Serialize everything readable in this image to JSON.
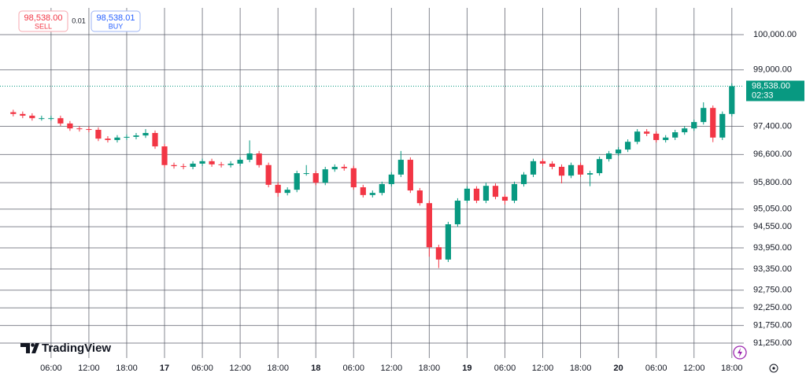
{
  "chart_data": {
    "type": "candlestick",
    "x": [
      0,
      1.5,
      3,
      4.5,
      6,
      7.5,
      9,
      10.5,
      12,
      13.5,
      15,
      16.5,
      18,
      19.5,
      21,
      22.5,
      24,
      25.5,
      27,
      28.5,
      30,
      31.5,
      33,
      34.5,
      36,
      37.5,
      39,
      40.5,
      42,
      43.5,
      45,
      46.5,
      48,
      49.5,
      51,
      52.5,
      54,
      55.5,
      57,
      58.5,
      60,
      61.5,
      63,
      64.5,
      66,
      67.5,
      69,
      70.5,
      72,
      73.5,
      75,
      76.5,
      78,
      79.5,
      81,
      82.5,
      84,
      85.5,
      87,
      88.5,
      90,
      91.5,
      93,
      94.5,
      96,
      97.5,
      99,
      100.5,
      102,
      103.5,
      105,
      106.5,
      108,
      109.5,
      111,
      112.5,
      114
    ],
    "open": [
      97800,
      97750,
      97700,
      97630,
      97630,
      97630,
      97480,
      97340,
      97320,
      97300,
      97050,
      97010,
      97080,
      97100,
      97140,
      97210,
      96830,
      96300,
      96270,
      96250,
      96340,
      96410,
      96320,
      96300,
      96340,
      96450,
      96630,
      96300,
      95740,
      95510,
      95600,
      96070,
      96070,
      95800,
      96180,
      96250,
      96210,
      95670,
      95450,
      95510,
      95760,
      96030,
      96450,
      95580,
      95220,
      93970,
      93620,
      94620,
      95290,
      95630,
      95290,
      95710,
      95400,
      95290,
      95760,
      96030,
      96410,
      96340,
      96250,
      96000,
      96300,
      96030,
      96070,
      96470,
      96630,
      96740,
      96960,
      97250,
      97190,
      97010,
      97080,
      97230,
      97340,
      97520,
      97920,
      97080,
      97750
    ],
    "high": [
      97870,
      97820,
      97770,
      97700,
      97700,
      97700,
      97550,
      97410,
      97390,
      97370,
      97120,
      97150,
      97170,
      97210,
      97320,
      97280,
      96900,
      96370,
      96340,
      96410,
      96480,
      96480,
      96390,
      96410,
      96520,
      97000,
      96700,
      96370,
      95810,
      95670,
      96140,
      96300,
      96140,
      96250,
      96320,
      96320,
      96280,
      95740,
      95580,
      95830,
      96100,
      96700,
      96520,
      95650,
      95290,
      94040,
      94690,
      95360,
      95700,
      95700,
      95800,
      95780,
      95470,
      95830,
      96100,
      96480,
      96480,
      96410,
      96320,
      96370,
      96370,
      96140,
      96540,
      96700,
      96810,
      97030,
      97320,
      97320,
      97260,
      97150,
      97300,
      97410,
      97590,
      98080,
      97990,
      97820,
      98620
    ],
    "low": [
      97680,
      97630,
      97560,
      97560,
      97560,
      97410,
      97270,
      97250,
      97230,
      96980,
      96940,
      96940,
      97010,
      97030,
      97070,
      96760,
      96230,
      96200,
      96180,
      96180,
      96270,
      96250,
      96230,
      96230,
      96270,
      96380,
      96230,
      95670,
      95400,
      95440,
      95530,
      96000,
      95730,
      95730,
      96110,
      96140,
      95600,
      95380,
      95380,
      95440,
      95690,
      95960,
      95510,
      95150,
      93700,
      93380,
      93550,
      94550,
      95220,
      95220,
      95220,
      95330,
      95180,
      95220,
      95690,
      95960,
      96270,
      96180,
      95780,
      95930,
      95960,
      95700,
      96000,
      96400,
      96560,
      96670,
      96890,
      97120,
      96940,
      96940,
      97010,
      97160,
      97270,
      97450,
      96950,
      97010,
      97680
    ],
    "close": [
      97750,
      97700,
      97630,
      97630,
      97630,
      97480,
      97340,
      97320,
      97300,
      97050,
      97010,
      97080,
      97100,
      97140,
      97210,
      96830,
      96300,
      96270,
      96250,
      96340,
      96410,
      96320,
      96300,
      96340,
      96450,
      96630,
      96300,
      95740,
      95510,
      95600,
      96070,
      96070,
      95800,
      96180,
      96250,
      96210,
      95670,
      95450,
      95510,
      95760,
      96030,
      96450,
      95580,
      95220,
      93970,
      93620,
      94620,
      95290,
      95630,
      95290,
      95710,
      95400,
      95290,
      95760,
      96030,
      96410,
      96340,
      96250,
      96000,
      96300,
      96030,
      96070,
      96470,
      96630,
      96740,
      96960,
      97250,
      97190,
      97010,
      97080,
      97230,
      97340,
      97520,
      97920,
      97080,
      97750,
      98538
    ],
    "up_color": "#089981",
    "down_color": "#f23645",
    "xlim": [
      -2.1,
      115.9
    ],
    "xticks": [
      {
        "value": 6,
        "label": "06:00"
      },
      {
        "value": 12,
        "label": "12:00"
      },
      {
        "value": 18,
        "label": "18:00"
      },
      {
        "value": 24,
        "label": "17"
      },
      {
        "value": 30,
        "label": "06:00"
      },
      {
        "value": 36,
        "label": "12:00"
      },
      {
        "value": 42,
        "label": "18:00"
      },
      {
        "value": 48,
        "label": "18"
      },
      {
        "value": 54,
        "label": "06:00"
      },
      {
        "value": 60,
        "label": "12:00"
      },
      {
        "value": 66,
        "label": "18:00"
      },
      {
        "value": 72,
        "label": "19"
      },
      {
        "value": 78,
        "label": "06:00"
      },
      {
        "value": 84,
        "label": "12:00"
      },
      {
        "value": 90,
        "label": "18:00"
      },
      {
        "value": 96,
        "label": "20"
      },
      {
        "value": 102,
        "label": "06:00"
      },
      {
        "value": 108,
        "label": "12:00"
      },
      {
        "value": 114,
        "label": "18:00"
      }
    ],
    "ylim": [
      90826,
      100759
    ],
    "yticks": [
      {
        "value": 100000,
        "label": "100,000.00"
      },
      {
        "value": 99000,
        "label": "99,000.00"
      },
      {
        "value": 97400,
        "label": "97,400.00"
      },
      {
        "value": 96600,
        "label": "96,600.00"
      },
      {
        "value": 95800,
        "label": "95,800.00"
      },
      {
        "value": 95050,
        "label": "95,050.00"
      },
      {
        "value": 94550,
        "label": "94,550.00"
      },
      {
        "value": 93950,
        "label": "93,950.00"
      },
      {
        "value": 93350,
        "label": "93,350.00"
      },
      {
        "value": 92750,
        "label": "92,750.00"
      },
      {
        "value": 92250,
        "label": "92,250.00"
      },
      {
        "value": 91750,
        "label": "91,750.00"
      },
      {
        "value": 91250,
        "label": "91,250.00"
      }
    ],
    "grid": true,
    "last_price": {
      "value": 98538,
      "label": "98,538.00",
      "countdown": "02:33"
    }
  },
  "trade_panel": {
    "sell": {
      "price": "98,538.00",
      "label": "SELL"
    },
    "spread": "0.01",
    "buy": {
      "price": "98,538.01",
      "label": "BUY"
    }
  },
  "brand": "TradingView"
}
